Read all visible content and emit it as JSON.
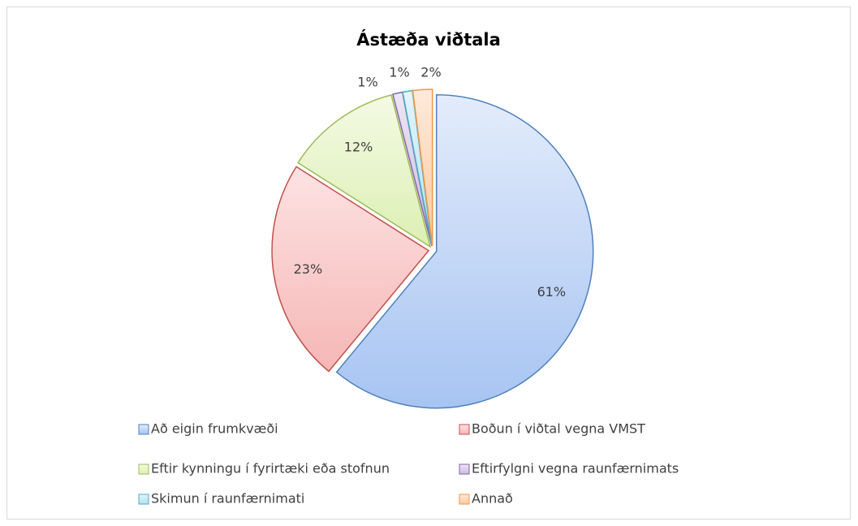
{
  "chart_data": {
    "type": "pie",
    "title": "Ástæða viðtala",
    "categories": [
      "Að eigin frumkvæði",
      "Boðun í viðtal vegna VMST",
      "Eftir kynningu í fyrirtæki eða stofnun",
      "Eftirfylgni vegna raunfærnimats",
      "Skimun í raunfærnimati",
      "Annað"
    ],
    "values": [
      61,
      23,
      12,
      1,
      1,
      2
    ],
    "value_labels": [
      "61%",
      "23%",
      "12%",
      "1%",
      "1%",
      "2%"
    ],
    "colors": [
      "#4f81bd",
      "#c0504d",
      "#9bbb59",
      "#8064a2",
      "#4bacc6",
      "#f79646"
    ],
    "legend": "bottom"
  }
}
